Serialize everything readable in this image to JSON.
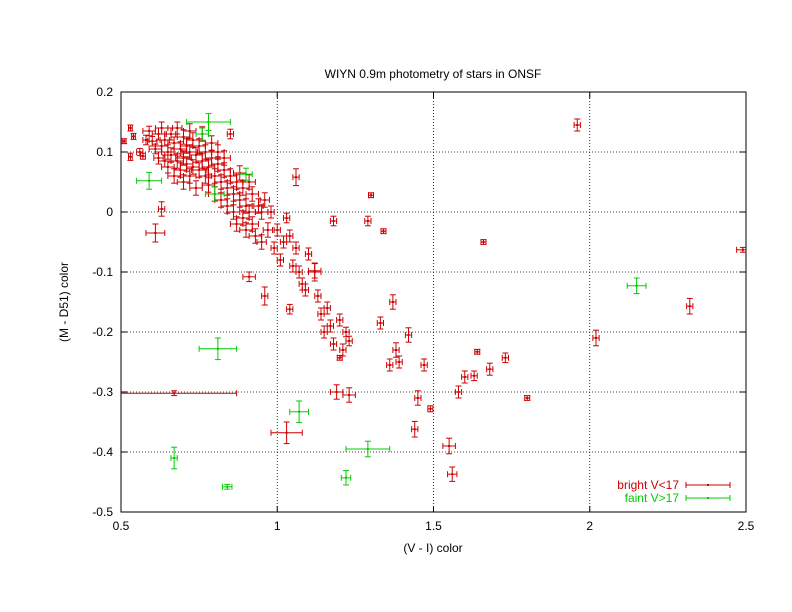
{
  "chart_data": {
    "type": "scatter",
    "title": "WIYN 0.9m photometry of stars in ONSF",
    "xlabel": "(V - I) color",
    "ylabel": "(M - D51) color",
    "xlim": [
      0.5,
      2.5
    ],
    "ylim": [
      -0.5,
      0.2
    ],
    "x_ticks": [
      0.5,
      1,
      1.5,
      2,
      2.5
    ],
    "x_tick_labels": [
      "0.5",
      "1",
      "1.5",
      "2",
      "2.5"
    ],
    "y_ticks": [
      -0.5,
      -0.4,
      -0.3,
      -0.2,
      -0.1,
      0,
      0.1,
      0.2
    ],
    "y_tick_labels": [
      "-0.5",
      "-0.4",
      "-0.3",
      "-0.2",
      "-0.1",
      "0",
      "0.1",
      "0.2"
    ],
    "grid": "dotted, both axes",
    "legend_position": "bottom-right",
    "series": [
      {
        "name": "bright V<17",
        "color": "#cc0000",
        "points": [
          [
            0.51,
            0.118,
            0.006,
            0.004
          ],
          [
            0.53,
            0.092,
            0.006,
            0.006
          ],
          [
            0.53,
            0.14,
            0.006,
            0.005
          ],
          [
            0.54,
            0.126,
            0.006,
            0.005
          ],
          [
            0.56,
            0.1,
            0.01,
            0.006
          ],
          [
            0.57,
            0.093,
            0.008,
            0.005
          ],
          [
            0.58,
            0.12,
            0.01,
            0.008
          ],
          [
            0.59,
            0.135,
            0.02,
            0.008
          ],
          [
            0.6,
            0.118,
            0.015,
            0.008
          ],
          [
            0.61,
            0.105,
            0.02,
            0.008
          ],
          [
            0.62,
            0.13,
            0.02,
            0.01
          ],
          [
            0.62,
            0.09,
            0.015,
            0.01
          ],
          [
            0.63,
            0.11,
            0.02,
            0.01
          ],
          [
            0.63,
            0.14,
            0.02,
            0.01
          ],
          [
            0.64,
            0.085,
            0.02,
            0.01
          ],
          [
            0.64,
            0.12,
            0.015,
            0.01
          ],
          [
            0.65,
            0.1,
            0.02,
            0.012
          ],
          [
            0.65,
            0.075,
            0.02,
            0.01
          ],
          [
            0.66,
            0.13,
            0.015,
            0.01
          ],
          [
            0.66,
            0.095,
            0.02,
            0.012
          ],
          [
            0.67,
            0.115,
            0.02,
            0.01
          ],
          [
            0.67,
            0.06,
            0.02,
            0.012
          ],
          [
            0.68,
            0.14,
            0.015,
            0.01
          ],
          [
            0.68,
            0.085,
            0.02,
            0.012
          ],
          [
            0.69,
            0.105,
            0.02,
            0.012
          ],
          [
            0.69,
            0.07,
            0.02,
            0.012
          ],
          [
            0.7,
            0.125,
            0.02,
            0.012
          ],
          [
            0.7,
            0.09,
            0.025,
            0.012
          ],
          [
            0.7,
            0.05,
            0.02,
            0.012
          ],
          [
            0.71,
            0.11,
            0.02,
            0.012
          ],
          [
            0.71,
            0.08,
            0.02,
            0.012
          ],
          [
            0.72,
            0.135,
            0.02,
            0.012
          ],
          [
            0.72,
            0.1,
            0.025,
            0.012
          ],
          [
            0.72,
            0.06,
            0.02,
            0.012
          ],
          [
            0.73,
            0.075,
            0.02,
            0.012
          ],
          [
            0.73,
            0.12,
            0.02,
            0.012
          ],
          [
            0.74,
            0.095,
            0.02,
            0.012
          ],
          [
            0.74,
            0.04,
            0.02,
            0.012
          ],
          [
            0.75,
            0.11,
            0.02,
            0.012
          ],
          [
            0.75,
            0.07,
            0.025,
            0.012
          ],
          [
            0.76,
            0.085,
            0.02,
            0.012
          ],
          [
            0.76,
            0.13,
            0.02,
            0.012
          ],
          [
            0.77,
            0.06,
            0.02,
            0.012
          ],
          [
            0.77,
            0.1,
            0.02,
            0.012
          ],
          [
            0.78,
            0.075,
            0.02,
            0.012
          ],
          [
            0.78,
            0.045,
            0.02,
            0.012
          ],
          [
            0.79,
            0.09,
            0.02,
            0.012
          ],
          [
            0.79,
            0.115,
            0.02,
            0.012
          ],
          [
            0.8,
            0.06,
            0.02,
            0.012
          ],
          [
            0.8,
            0.03,
            0.02,
            0.012
          ],
          [
            0.81,
            0.08,
            0.02,
            0.012
          ],
          [
            0.81,
            0.1,
            0.02,
            0.012
          ],
          [
            0.82,
            0.05,
            0.02,
            0.012
          ],
          [
            0.82,
            0.02,
            0.02,
            0.012
          ],
          [
            0.83,
            0.07,
            0.02,
            0.012
          ],
          [
            0.83,
            0.09,
            0.02,
            0.012
          ],
          [
            0.84,
            0.04,
            0.02,
            0.012
          ],
          [
            0.84,
            0.01,
            0.02,
            0.012
          ],
          [
            0.85,
            0.06,
            0.02,
            0.012
          ],
          [
            0.85,
            0.13,
            0.01,
            0.008
          ],
          [
            0.86,
            0.03,
            0.02,
            0.012
          ],
          [
            0.86,
            0.0,
            0.02,
            0.012
          ],
          [
            0.87,
            0.05,
            0.02,
            0.012
          ],
          [
            0.87,
            -0.02,
            0.02,
            0.012
          ],
          [
            0.88,
            0.02,
            0.02,
            0.012
          ],
          [
            0.88,
            0.065,
            0.02,
            0.012
          ],
          [
            0.89,
            -0.01,
            0.02,
            0.012
          ],
          [
            0.89,
            0.04,
            0.02,
            0.012
          ],
          [
            0.9,
            0.01,
            0.02,
            0.012
          ],
          [
            0.9,
            -0.03,
            0.02,
            0.012
          ],
          [
            0.91,
            0.05,
            0.02,
            0.012
          ],
          [
            0.91,
            0.0,
            0.02,
            0.012
          ],
          [
            0.92,
            -0.02,
            0.02,
            0.012
          ],
          [
            0.92,
            0.03,
            0.02,
            0.012
          ],
          [
            0.93,
            -0.04,
            0.02,
            0.012
          ],
          [
            0.94,
            0.01,
            0.015,
            0.012
          ],
          [
            0.95,
            -0.05,
            0.015,
            0.012
          ],
          [
            0.95,
            0.0,
            0.02,
            0.012
          ],
          [
            0.96,
            0.02,
            0.015,
            0.012
          ],
          [
            0.97,
            -0.03,
            0.015,
            0.012
          ],
          [
            0.98,
            0.0,
            0.01,
            0.01
          ],
          [
            0.99,
            -0.06,
            0.01,
            0.01
          ],
          [
            1.0,
            -0.03,
            0.01,
            0.01
          ],
          [
            1.01,
            -0.08,
            0.01,
            0.01
          ],
          [
            1.02,
            -0.05,
            0.01,
            0.01
          ],
          [
            1.03,
            -0.01,
            0.01,
            0.008
          ],
          [
            1.04,
            -0.04,
            0.01,
            0.01
          ],
          [
            1.05,
            -0.09,
            0.01,
            0.01
          ],
          [
            1.06,
            -0.06,
            0.01,
            0.01
          ],
          [
            1.07,
            -0.1,
            0.01,
            0.01
          ],
          [
            1.08,
            -0.12,
            0.01,
            0.01
          ],
          [
            1.09,
            -0.13,
            0.01,
            0.01
          ],
          [
            1.1,
            -0.07,
            0.01,
            0.01
          ],
          [
            1.12,
            -0.1,
            0.02,
            0.015
          ],
          [
            1.13,
            -0.14,
            0.01,
            0.01
          ],
          [
            1.14,
            -0.17,
            0.01,
            0.01
          ],
          [
            1.15,
            -0.2,
            0.01,
            0.01
          ],
          [
            1.16,
            -0.16,
            0.01,
            0.01
          ],
          [
            1.17,
            -0.19,
            0.01,
            0.01
          ],
          [
            1.18,
            -0.22,
            0.01,
            0.01
          ],
          [
            1.2,
            -0.18,
            0.01,
            0.01
          ],
          [
            1.22,
            -0.2,
            0.01,
            0.008
          ],
          [
            1.23,
            -0.215,
            0.01,
            0.008
          ],
          [
            1.3,
            0.028,
            0.008,
            0.004
          ],
          [
            1.34,
            -0.032,
            0.008,
            0.004
          ],
          [
            1.36,
            -0.255,
            0.01,
            0.01
          ],
          [
            1.37,
            -0.15,
            0.01,
            0.012
          ],
          [
            1.38,
            -0.23,
            0.01,
            0.012
          ],
          [
            1.39,
            -0.25,
            0.01,
            0.01
          ],
          [
            1.42,
            -0.205,
            0.01,
            0.012
          ],
          [
            1.45,
            -0.31,
            0.01,
            0.012
          ],
          [
            1.47,
            -0.255,
            0.01,
            0.01
          ],
          [
            1.49,
            -0.328,
            0.008,
            0.005
          ],
          [
            1.58,
            -0.3,
            0.01,
            0.01
          ],
          [
            1.6,
            -0.275,
            0.01,
            0.01
          ],
          [
            1.63,
            -0.273,
            0.01,
            0.008
          ],
          [
            1.64,
            -0.233,
            0.008,
            0.004
          ],
          [
            1.66,
            -0.05,
            0.008,
            0.004
          ],
          [
            1.68,
            -0.262,
            0.01,
            0.01
          ],
          [
            1.73,
            -0.243,
            0.01,
            0.008
          ],
          [
            1.8,
            -0.31,
            0.008,
            0.004
          ],
          [
            1.96,
            0.145,
            0.01,
            0.01
          ],
          [
            2.02,
            -0.21,
            0.01,
            0.013
          ],
          [
            2.32,
            -0.157,
            0.01,
            0.013
          ],
          [
            2.49,
            -0.063,
            0.02,
            0.004
          ],
          [
            0.67,
            -0.302,
            0.2,
            0.004
          ],
          [
            0.61,
            -0.035,
            0.03,
            0.015
          ],
          [
            1.03,
            -0.368,
            0.05,
            0.018
          ],
          [
            1.06,
            0.058,
            0.01,
            0.014
          ],
          [
            1.18,
            -0.015,
            0.01,
            0.008
          ],
          [
            1.12,
            -0.098,
            0.02,
            0.012
          ],
          [
            1.19,
            -0.3,
            0.02,
            0.012
          ],
          [
            1.23,
            -0.305,
            0.02,
            0.012
          ],
          [
            1.44,
            -0.362,
            0.01,
            0.013
          ],
          [
            1.55,
            -0.39,
            0.02,
            0.013
          ],
          [
            1.56,
            -0.437,
            0.015,
            0.012
          ],
          [
            0.96,
            -0.14,
            0.01,
            0.015
          ],
          [
            0.91,
            -0.108,
            0.02,
            0.008
          ],
          [
            1.04,
            -0.162,
            0.01,
            0.008
          ],
          [
            1.2,
            -0.243,
            0.008,
            0.004
          ],
          [
            1.29,
            -0.015,
            0.01,
            0.008
          ],
          [
            1.21,
            -0.23,
            0.01,
            0.01
          ],
          [
            1.33,
            -0.185,
            0.01,
            0.01
          ],
          [
            0.63,
            0.005,
            0.01,
            0.012
          ]
        ]
      },
      {
        "name": "faint V>17",
        "color": "#00cc00",
        "points": [
          [
            0.59,
            0.052,
            0.04,
            0.014
          ],
          [
            0.78,
            0.15,
            0.07,
            0.014
          ],
          [
            0.76,
            0.13,
            0.02,
            0.01
          ],
          [
            0.8,
            0.03,
            0.03,
            0.012
          ],
          [
            0.81,
            -0.228,
            0.06,
            0.018
          ],
          [
            0.67,
            -0.41,
            0.01,
            0.018
          ],
          [
            0.84,
            -0.458,
            0.015,
            0.004
          ],
          [
            1.07,
            -0.333,
            0.03,
            0.018
          ],
          [
            1.22,
            -0.443,
            0.015,
            0.012
          ],
          [
            1.29,
            -0.395,
            0.07,
            0.013
          ],
          [
            2.15,
            -0.123,
            0.03,
            0.013
          ],
          [
            0.9,
            0.063,
            0.02,
            0.01
          ]
        ]
      }
    ]
  }
}
